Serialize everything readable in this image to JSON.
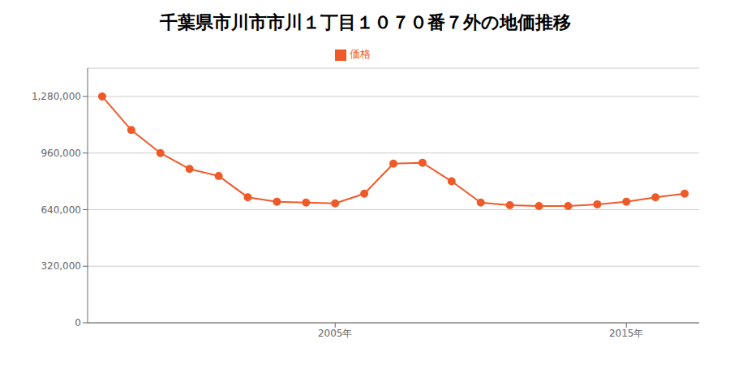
{
  "chart_data": {
    "type": "line",
    "title": "千葉県市川市市川１丁目１０７０番７外の地価推移",
    "x": [
      1997,
      1998,
      1999,
      2000,
      2001,
      2002,
      2003,
      2004,
      2005,
      2006,
      2007,
      2008,
      2009,
      2010,
      2011,
      2012,
      2013,
      2014,
      2015,
      2016,
      2017
    ],
    "series": [
      {
        "name": "価格",
        "color": "#f05a28",
        "values": [
          1280000,
          1090000,
          960000,
          870000,
          830000,
          710000,
          685000,
          680000,
          675000,
          730000,
          900000,
          905000,
          800000,
          680000,
          665000,
          660000,
          660000,
          670000,
          685000,
          710000,
          730000
        ]
      }
    ],
    "xlim": [
      1996.5,
      2017.5
    ],
    "xticks": [
      {
        "value": 2005,
        "label": "2005年"
      },
      {
        "value": 2015,
        "label": "2015年"
      }
    ],
    "ylim": [
      0,
      1440000
    ],
    "yticks": [
      0,
      {
        "value": 320000,
        "label": "320,000"
      },
      {
        "value": 640000,
        "label": "640,000"
      },
      {
        "value": 960000,
        "label": "960,000"
      },
      {
        "value": 1280000,
        "label": "1,280,000"
      }
    ],
    "grid": true,
    "legend": "top",
    "marker": "circle"
  }
}
